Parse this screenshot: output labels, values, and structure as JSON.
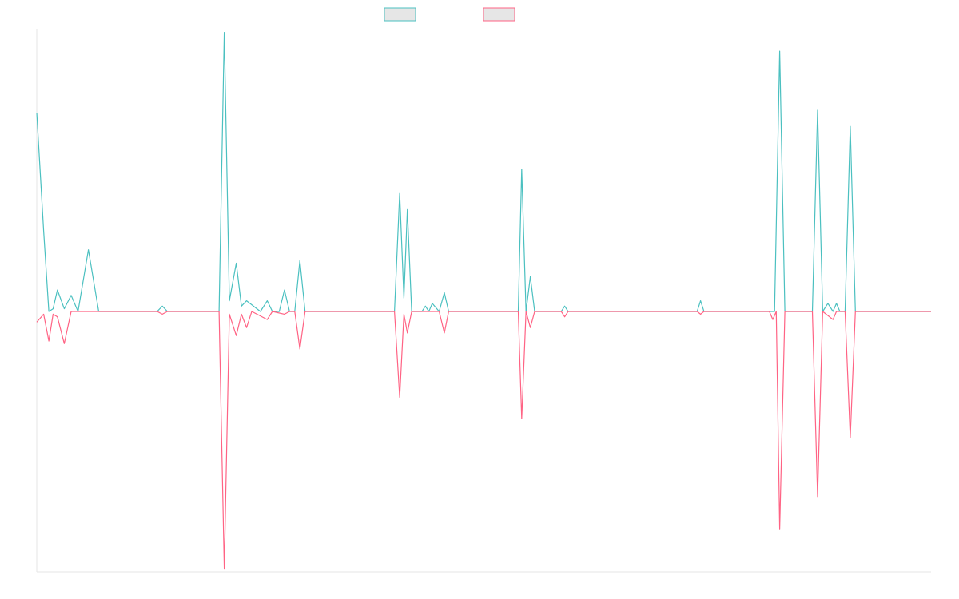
{
  "chart_data": {
    "type": "line",
    "title": "",
    "xlabel": "",
    "ylabel": "",
    "ylim": [
      -1,
      1
    ],
    "grid": false,
    "legend": "top-center",
    "legend_fill": "#e6e6e6",
    "colors": {
      "series_a": "#4bc0c0",
      "series_b": "#ff6384"
    },
    "series": [
      {
        "key": "a",
        "color": "#4bc0c0",
        "points": [
          [
            0,
            0.74
          ],
          [
            0.4,
            0.3
          ],
          [
            0.7,
            0.0
          ],
          [
            0.95,
            0.01
          ],
          [
            1.2,
            0.08
          ],
          [
            1.6,
            0.01
          ],
          [
            2,
            0.06
          ],
          [
            2.4,
            0.0
          ],
          [
            3,
            0.23
          ],
          [
            3.6,
            0.0
          ],
          [
            7,
            0.0
          ],
          [
            7.3,
            0.02
          ],
          [
            7.6,
            0.0
          ],
          [
            10.6,
            0.0
          ],
          [
            10.9,
            1.04
          ],
          [
            11.2,
            0.04
          ],
          [
            11.6,
            0.18
          ],
          [
            11.9,
            0.02
          ],
          [
            12.2,
            0.04
          ],
          [
            13,
            0.0
          ],
          [
            13.4,
            0.04
          ],
          [
            13.7,
            0.0
          ],
          [
            14.1,
            0.0
          ],
          [
            14.4,
            0.08
          ],
          [
            14.7,
            0.0
          ],
          [
            15,
            0.0
          ],
          [
            15.3,
            0.19
          ],
          [
            15.6,
            0.0
          ],
          [
            20.8,
            0.0
          ],
          [
            21.1,
            0.44
          ],
          [
            21.35,
            0.05
          ],
          [
            21.55,
            0.38
          ],
          [
            21.8,
            0.0
          ],
          [
            22.4,
            0.0
          ],
          [
            22.6,
            0.02
          ],
          [
            22.8,
            0.0
          ],
          [
            23,
            0.03
          ],
          [
            23.4,
            0.0
          ],
          [
            23.7,
            0.07
          ],
          [
            23.95,
            0.0
          ],
          [
            28,
            0.0
          ],
          [
            28.2,
            0.53
          ],
          [
            28.45,
            0.0
          ],
          [
            28.7,
            0.13
          ],
          [
            28.95,
            0.0
          ],
          [
            30.5,
            0.0
          ],
          [
            30.7,
            0.02
          ],
          [
            30.9,
            0.0
          ],
          [
            38.4,
            0.0
          ],
          [
            38.6,
            0.04
          ],
          [
            38.8,
            0.0
          ],
          [
            42.9,
            0.0
          ],
          [
            43.2,
            0.97
          ],
          [
            43.5,
            0.0
          ],
          [
            45.1,
            0.0
          ],
          [
            45.4,
            0.75
          ],
          [
            45.7,
            0.0
          ],
          [
            46,
            0.03
          ],
          [
            46.3,
            0.0
          ],
          [
            46.5,
            0.03
          ],
          [
            46.7,
            0.0
          ],
          [
            47,
            0.0
          ],
          [
            47.3,
            0.69
          ],
          [
            47.6,
            0.0
          ],
          [
            52,
            0.0
          ]
        ]
      },
      {
        "key": "b",
        "color": "#ff6384",
        "points": [
          [
            0,
            -0.04
          ],
          [
            0.4,
            -0.01
          ],
          [
            0.7,
            -0.11
          ],
          [
            0.95,
            -0.01
          ],
          [
            1.2,
            -0.02
          ],
          [
            1.6,
            -0.12
          ],
          [
            2,
            0.0
          ],
          [
            3,
            0.0
          ],
          [
            7,
            0.0
          ],
          [
            7.3,
            -0.01
          ],
          [
            7.6,
            0.0
          ],
          [
            10.6,
            0.0
          ],
          [
            10.9,
            -0.96
          ],
          [
            11.2,
            -0.01
          ],
          [
            11.6,
            -0.09
          ],
          [
            11.9,
            -0.01
          ],
          [
            12.2,
            -0.06
          ],
          [
            12.5,
            0.0
          ],
          [
            13.4,
            -0.03
          ],
          [
            13.7,
            0.0
          ],
          [
            14.4,
            -0.01
          ],
          [
            14.7,
            0.0
          ],
          [
            15,
            0.0
          ],
          [
            15.3,
            -0.14
          ],
          [
            15.6,
            0.0
          ],
          [
            20.8,
            0.0
          ],
          [
            21.1,
            -0.32
          ],
          [
            21.35,
            -0.01
          ],
          [
            21.55,
            -0.08
          ],
          [
            21.8,
            0.0
          ],
          [
            23.4,
            0.0
          ],
          [
            23.7,
            -0.08
          ],
          [
            23.95,
            0.0
          ],
          [
            28,
            0.0
          ],
          [
            28.2,
            -0.4
          ],
          [
            28.45,
            0.0
          ],
          [
            28.7,
            -0.06
          ],
          [
            28.95,
            0.0
          ],
          [
            30.5,
            0.0
          ],
          [
            30.7,
            -0.02
          ],
          [
            30.9,
            0.0
          ],
          [
            38.4,
            0.0
          ],
          [
            38.6,
            -0.01
          ],
          [
            38.8,
            0.0
          ],
          [
            42.6,
            0.0
          ],
          [
            42.8,
            -0.03
          ],
          [
            43,
            0.0
          ],
          [
            43.2,
            -0.81
          ],
          [
            43.5,
            0.0
          ],
          [
            45.1,
            0.0
          ],
          [
            45.4,
            -0.69
          ],
          [
            45.7,
            0.0
          ],
          [
            46.3,
            -0.03
          ],
          [
            46.5,
            0.0
          ],
          [
            47,
            0.0
          ],
          [
            47.3,
            -0.47
          ],
          [
            47.6,
            0.0
          ],
          [
            52,
            0.0
          ]
        ]
      }
    ]
  }
}
